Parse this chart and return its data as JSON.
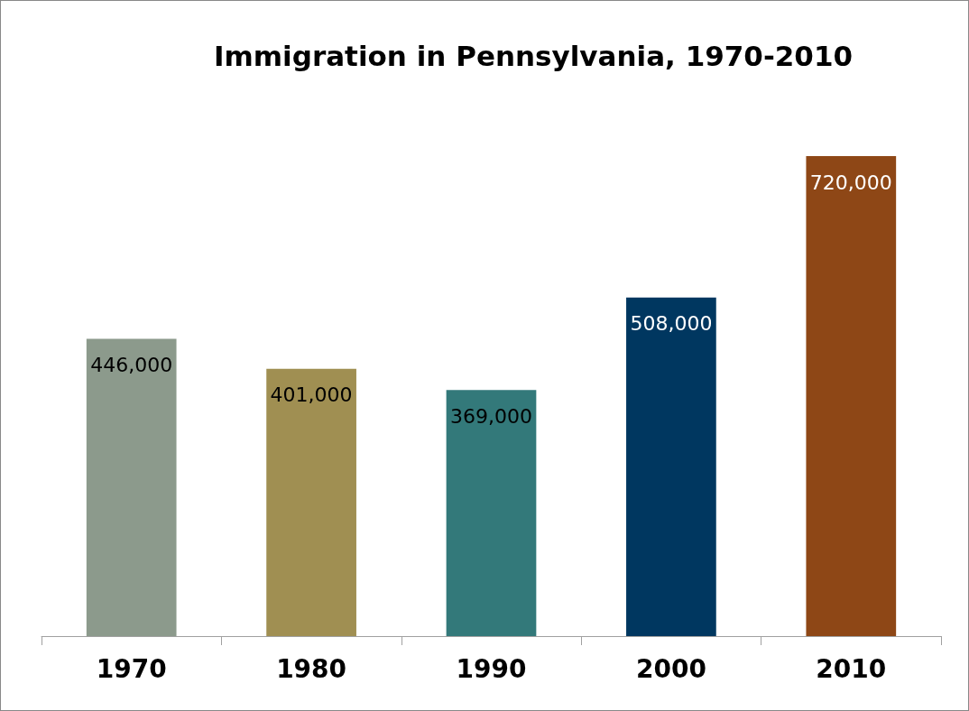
{
  "chart_data": {
    "type": "bar",
    "title": "Immigration in Pennsylvania, 1970-2010",
    "categories": [
      "1970",
      "1980",
      "1990",
      "2000",
      "2010"
    ],
    "values": [
      446000,
      401000,
      369000,
      508000,
      720000
    ],
    "value_labels": [
      "446,000",
      "401,000",
      "369,000",
      "508,000",
      "720,000"
    ],
    "colors": [
      "#8c9a8c",
      "#a08f52",
      "#33797a",
      "#003760",
      "#8e4716"
    ],
    "grid": false,
    "tick_labels": "x"
  }
}
